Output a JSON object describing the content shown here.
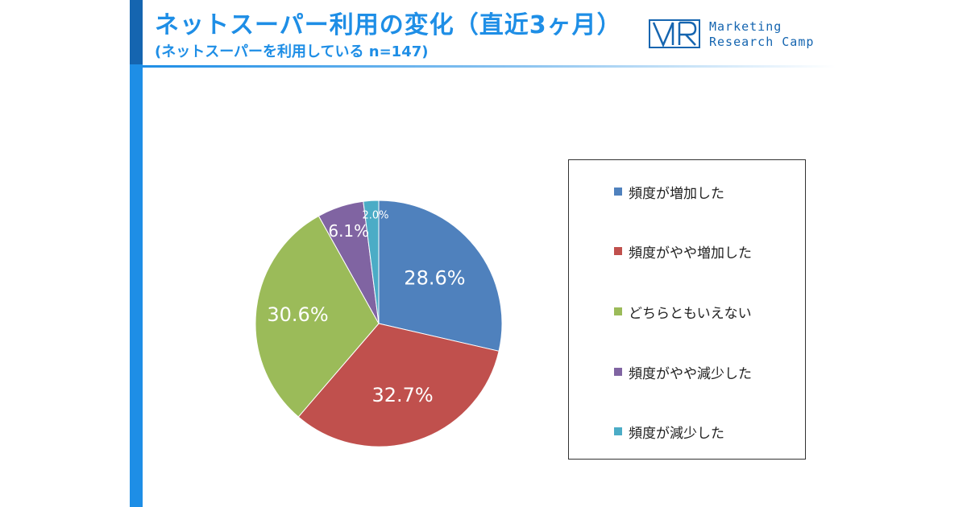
{
  "header": {
    "title": "ネットスーパー利用の変化（直近3ヶ月）",
    "subtitle": "(ネットスーパーを利用している n=147)"
  },
  "logo": {
    "line1": "Marketing",
    "line2": "Research Camp",
    "color": "#1565b0"
  },
  "chart_data": {
    "type": "pie",
    "title": "ネットスーパー利用の変化（直近3ヶ月）",
    "subtitle": "(ネットスーパーを利用している n=147)",
    "unit": "%",
    "legend_position": "right",
    "categories": [
      "頻度が増加した",
      "頻度がやや増加した",
      "どちらともいえない",
      "頻度がやや減少した",
      "頻度が減少した"
    ],
    "values": [
      28.6,
      32.7,
      30.6,
      6.1,
      2.0
    ],
    "labels": [
      "28.6%",
      "32.7%",
      "30.6%",
      "6.1%",
      "2.0%"
    ],
    "colors": [
      "#4f81bd",
      "#c0504d",
      "#9bbb59",
      "#8064a2",
      "#4bacc6"
    ]
  }
}
